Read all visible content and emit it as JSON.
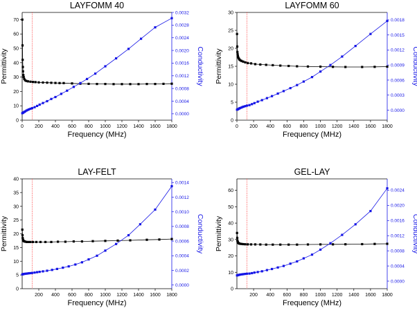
{
  "colors": {
    "permittivity": "#000000",
    "conductivity": "#1515e6",
    "marker": "#ff3b3b"
  },
  "chart_data": [
    {
      "type": "line",
      "title": "LAYFOMM 40",
      "xlabel": "Frequency (MHz)",
      "ylabel": "Permittivity",
      "y2label": "Conductivity",
      "xlim": [
        0,
        1800
      ],
      "ylim": [
        0,
        75
      ],
      "y2lim": [
        -0.0002,
        0.0032
      ],
      "xticks": [
        0,
        200,
        400,
        600,
        800,
        1000,
        1200,
        1400,
        1600,
        1800
      ],
      "yticks": [
        0,
        10,
        20,
        30,
        40,
        50,
        60,
        70
      ],
      "y2ticks": [
        0.0,
        0.0004,
        0.0008,
        0.0012,
        0.0016,
        0.002,
        0.0024,
        0.0028,
        0.0032
      ],
      "y2tick_labels": [
        "0.0000",
        "0.0004",
        "0.0008",
        "0.0012",
        "0.0016",
        "0.0020",
        "0.0024",
        "0.0028",
        "0.0032"
      ],
      "marker_x": 120,
      "series": [
        {
          "name": "Permittivity",
          "axis": "left",
          "x": [
            2,
            4,
            6,
            8,
            10,
            14,
            18,
            25,
            35,
            50,
            70,
            100,
            130,
            160,
            200,
            250,
            300,
            350,
            400,
            450,
            500,
            600,
            700,
            800,
            900,
            1000,
            1100,
            1200,
            1300,
            1400,
            1500,
            1600,
            1700,
            1800
          ],
          "y": [
            70,
            52,
            42,
            37,
            34,
            31.5,
            30,
            28.7,
            27.8,
            27.3,
            27,
            26.8,
            26.6,
            26.5,
            26.3,
            26.2,
            26.1,
            26,
            25.9,
            25.8,
            25.8,
            25.6,
            25.4,
            25.3,
            25.2,
            25.2,
            25.1,
            25.1,
            25.1,
            25.1,
            25.2,
            25.2,
            25.3,
            25.4
          ]
        },
        {
          "name": "Conductivity",
          "axis": "right",
          "x": [
            2,
            8,
            15,
            25,
            35,
            50,
            65,
            80,
            100,
            120,
            150,
            180,
            210,
            250,
            300,
            350,
            400,
            470,
            540,
            620,
            700,
            780,
            880,
            1000,
            1130,
            1280,
            1430,
            1600,
            1800
          ],
          "y": [
            2e-05,
            3e-05,
            4.5e-05,
            6e-05,
            7.5e-05,
            0.0001,
            0.00012,
            0.00014,
            0.00016,
            0.00018,
            0.00021,
            0.00025,
            0.00029,
            0.00034,
            0.0004,
            0.00047,
            0.00053,
            0.00063,
            0.00073,
            0.00085,
            0.00097,
            0.0011,
            0.00127,
            0.0015,
            0.00175,
            0.00205,
            0.00237,
            0.00273,
            0.00302
          ]
        }
      ]
    },
    {
      "type": "line",
      "title": "LAYFOMM 60",
      "xlabel": "Frequency (MHz)",
      "ylabel": "Permittivity",
      "y2label": "Conductivity",
      "xlim": [
        0,
        1800
      ],
      "ylim": [
        0,
        30
      ],
      "y2lim": [
        -0.0002,
        0.00195
      ],
      "xticks": [
        0,
        200,
        400,
        600,
        800,
        1000,
        1200,
        1400,
        1600,
        1800
      ],
      "yticks": [
        0,
        5,
        10,
        15,
        20,
        25,
        30
      ],
      "y2ticks": [
        0.0,
        0.0003,
        0.0006,
        0.0009,
        0.0012,
        0.0015,
        0.0018
      ],
      "y2tick_labels": [
        "0.0000",
        "0.0003",
        "0.0006",
        "0.0009",
        "0.0012",
        "0.0015",
        "0.0018"
      ],
      "marker_x": 120,
      "series": [
        {
          "name": "Permittivity",
          "axis": "left",
          "x": [
            2,
            4,
            6,
            8,
            12,
            16,
            22,
            30,
            40,
            55,
            75,
            100,
            130,
            170,
            220,
            280,
            350,
            430,
            520,
            620,
            720,
            850,
            1000,
            1150,
            1300,
            1500,
            1650,
            1800
          ],
          "y": [
            24,
            20.5,
            19,
            18.4,
            17.9,
            17.5,
            17.2,
            16.9,
            16.7,
            16.5,
            16.3,
            16.1,
            15.9,
            15.8,
            15.6,
            15.5,
            15.4,
            15.3,
            15.2,
            15.1,
            15,
            14.95,
            14.9,
            14.85,
            14.8,
            14.8,
            14.85,
            14.9
          ]
        },
        {
          "name": "Conductivity",
          "axis": "right",
          "x": [
            2,
            8,
            15,
            25,
            35,
            50,
            65,
            80,
            100,
            120,
            150,
            180,
            210,
            250,
            300,
            360,
            420,
            490,
            560,
            640,
            720,
            800,
            900,
            1000,
            1120,
            1260,
            1420,
            1600,
            1800
          ],
          "y": [
            1e-05,
            1.5e-05,
            2e-05,
            3e-05,
            4e-05,
            5e-05,
            6e-05,
            7e-05,
            8e-05,
            9e-05,
            0.0001,
            0.00012,
            0.00014,
            0.00017,
            0.0002,
            0.00024,
            0.00028,
            0.00033,
            0.00038,
            0.00044,
            0.0005,
            0.00057,
            0.00066,
            0.00077,
            0.0009,
            0.00107,
            0.00128,
            0.00152,
            0.00178
          ]
        }
      ]
    },
    {
      "type": "line",
      "title": "LAY-FELT",
      "xlabel": "Frequency (MHz)",
      "ylabel": "Permittivity",
      "y2label": "Conductivity",
      "xlim": [
        0,
        1800
      ],
      "ylim": [
        0,
        40
      ],
      "y2lim": [
        -5e-05,
        0.00145
      ],
      "xticks": [
        200,
        400,
        600,
        800,
        1000,
        1200,
        1400,
        1600,
        1800
      ],
      "yticks": [
        0,
        5,
        10,
        15,
        20,
        25,
        30,
        35,
        40
      ],
      "y2ticks": [
        0.0,
        0.0002,
        0.0004,
        0.0006,
        0.0008,
        0.001,
        0.0012,
        0.0014
      ],
      "y2tick_labels": [
        "0.0000",
        "0.0002",
        "0.0004",
        "0.0006",
        "0.0008",
        "0.0010",
        "0.0012",
        "0.0014"
      ],
      "marker_x": 120,
      "series": [
        {
          "name": "Permittivity",
          "axis": "left",
          "x": [
            2,
            4,
            6,
            8,
            12,
            16,
            22,
            30,
            40,
            55,
            75,
            100,
            130,
            170,
            220,
            280,
            350,
            430,
            520,
            620,
            720,
            850,
            1000,
            1150,
            1300,
            1500,
            1650,
            1800
          ],
          "y": [
            21.5,
            19.5,
            18.5,
            18,
            17.6,
            17.4,
            17.3,
            17.2,
            17.1,
            17,
            17,
            17,
            17,
            17,
            17,
            17,
            17,
            17.1,
            17.1,
            17.2,
            17.2,
            17.3,
            17.4,
            17.5,
            17.6,
            17.8,
            17.9,
            18.1
          ]
        },
        {
          "name": "Conductivity",
          "axis": "right",
          "x": [
            2,
            8,
            15,
            25,
            35,
            50,
            65,
            80,
            100,
            120,
            150,
            180,
            210,
            250,
            300,
            360,
            420,
            490,
            560,
            640,
            720,
            800,
            900,
            1000,
            1130,
            1280,
            1420,
            1600,
            1800
          ],
          "y": [
            0.000145,
            0.000147,
            0.00015,
            0.000152,
            0.000154,
            0.000156,
            0.000158,
            0.00016,
            0.000162,
            0.000165,
            0.00017,
            0.000175,
            0.00018,
            0.000187,
            0.000195,
            0.000207,
            0.00022,
            0.000237,
            0.000255,
            0.00028,
            0.00031,
            0.00035,
            0.0004,
            0.00047,
            0.00056,
            0.00068,
            0.00083,
            0.00103,
            0.00135
          ]
        }
      ]
    },
    {
      "type": "line",
      "title": "GEL-LAY",
      "xlabel": "Frequency (MHz)",
      "ylabel": "Permittivity",
      "y2label": "Conductivity",
      "xlim": [
        0,
        1800
      ],
      "ylim": [
        0,
        67
      ],
      "y2lim": [
        -0.0002,
        0.0027
      ],
      "xticks": [
        200,
        400,
        600,
        800,
        1000,
        1200,
        1400,
        1600,
        1800
      ],
      "yticks": [
        0,
        10,
        20,
        30,
        40,
        50,
        60
      ],
      "y2ticks": [
        0.0,
        0.0004,
        0.0008,
        0.0012,
        0.0016,
        0.002,
        0.0024
      ],
      "y2tick_labels": [
        "0.0000",
        "0.0004",
        "0.0008",
        "0.0012",
        "0.0016",
        "0.0020",
        "0.0024"
      ],
      "marker_x": 120,
      "series": [
        {
          "name": "Permittivity",
          "axis": "left",
          "x": [
            2,
            4,
            6,
            8,
            12,
            16,
            22,
            30,
            40,
            55,
            75,
            100,
            130,
            170,
            220,
            280,
            350,
            430,
            520,
            620,
            720,
            850,
            1000,
            1150,
            1300,
            1500,
            1650,
            1800
          ],
          "y": [
            34,
            31,
            29.5,
            28.8,
            28.3,
            28,
            27.7,
            27.5,
            27.4,
            27.3,
            27.2,
            27.1,
            27.05,
            27,
            27,
            26.95,
            26.9,
            26.9,
            26.9,
            26.9,
            26.9,
            26.95,
            27,
            27.05,
            27.1,
            27.2,
            27.3,
            27.4
          ]
        },
        {
          "name": "Conductivity",
          "axis": "right",
          "x": [
            2,
            8,
            15,
            25,
            35,
            50,
            65,
            80,
            100,
            120,
            150,
            180,
            210,
            250,
            300,
            360,
            420,
            490,
            560,
            640,
            720,
            800,
            900,
            1000,
            1120,
            1260,
            1420,
            1600,
            1800
          ],
          "y": [
            0.00015,
            0.000155,
            0.00016,
            0.000165,
            0.00017,
            0.000175,
            0.00018,
            0.000185,
            0.00019,
            0.000195,
            0.0002,
            0.00021,
            0.000225,
            0.00024,
            0.00026,
            0.00029,
            0.00032,
            0.00036,
            0.0004,
            0.00046,
            0.00052,
            0.0006,
            0.0007,
            0.00083,
            0.001,
            0.00122,
            0.0015,
            0.00185,
            0.00245
          ]
        }
      ]
    }
  ]
}
